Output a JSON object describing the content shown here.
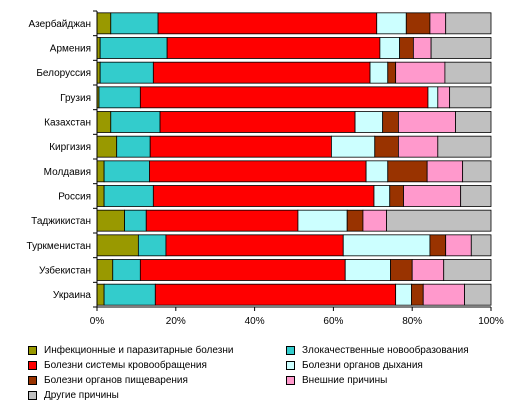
{
  "chart_data": {
    "type": "bar",
    "orientation": "horizontal",
    "stacked": "percent",
    "categories": [
      "Азербайджан",
      "Армения",
      "Белоруссия",
      "Грузия",
      "Казахстан",
      "Киргизия",
      "Молдавия",
      "Россия",
      "Таджикистан",
      "Туркменистан",
      "Узбекистан",
      "Украина"
    ],
    "series": [
      {
        "name": "Инфекционные и паразитарные болезни",
        "color": "#999900",
        "values": [
          3.5,
          0.8,
          0.8,
          0.5,
          3.5,
          5,
          1.8,
          1.8,
          7,
          10.5,
          4,
          1.8
        ]
      },
      {
        "name": "Злокачественные новообразования",
        "color": "#33CCCC",
        "values": [
          12,
          17,
          13.5,
          10.5,
          12.5,
          8.5,
          11.5,
          12.5,
          5.5,
          7,
          7,
          13
        ]
      },
      {
        "name": "Болезни системы кровообращения",
        "color": "#FF0000",
        "values": [
          55.5,
          54,
          55,
          73,
          49.5,
          46,
          55,
          56,
          38.5,
          45,
          52,
          61
        ]
      },
      {
        "name": "Болезни органов дыхания",
        "color": "#CCFFFF",
        "values": [
          7.5,
          5,
          4.5,
          2.5,
          7,
          11,
          5.5,
          4,
          12.5,
          22,
          11.5,
          4
        ]
      },
      {
        "name": "Болезни органов пищеварения",
        "color": "#993300",
        "values": [
          6,
          3.5,
          2,
          0,
          4,
          6,
          10,
          3.5,
          4,
          4,
          5.5,
          3
        ]
      },
      {
        "name": "Внешние причины",
        "color": "#FF99CC",
        "values": [
          4,
          4.5,
          12.5,
          3,
          14.5,
          10,
          9,
          14.5,
          6,
          6.5,
          8,
          10.5
        ]
      },
      {
        "name": "Другие причины",
        "color": "#C0C0C0",
        "values": [
          11.5,
          15.2,
          11.7,
          10.5,
          9,
          13.5,
          7.2,
          7.7,
          26.5,
          5,
          12,
          6.7
        ]
      }
    ],
    "xlim": [
      0,
      100
    ],
    "xticks": [
      "0%",
      "20%",
      "40%",
      "60%",
      "80%",
      "100%"
    ],
    "grid": false,
    "legend_position": "bottom"
  }
}
